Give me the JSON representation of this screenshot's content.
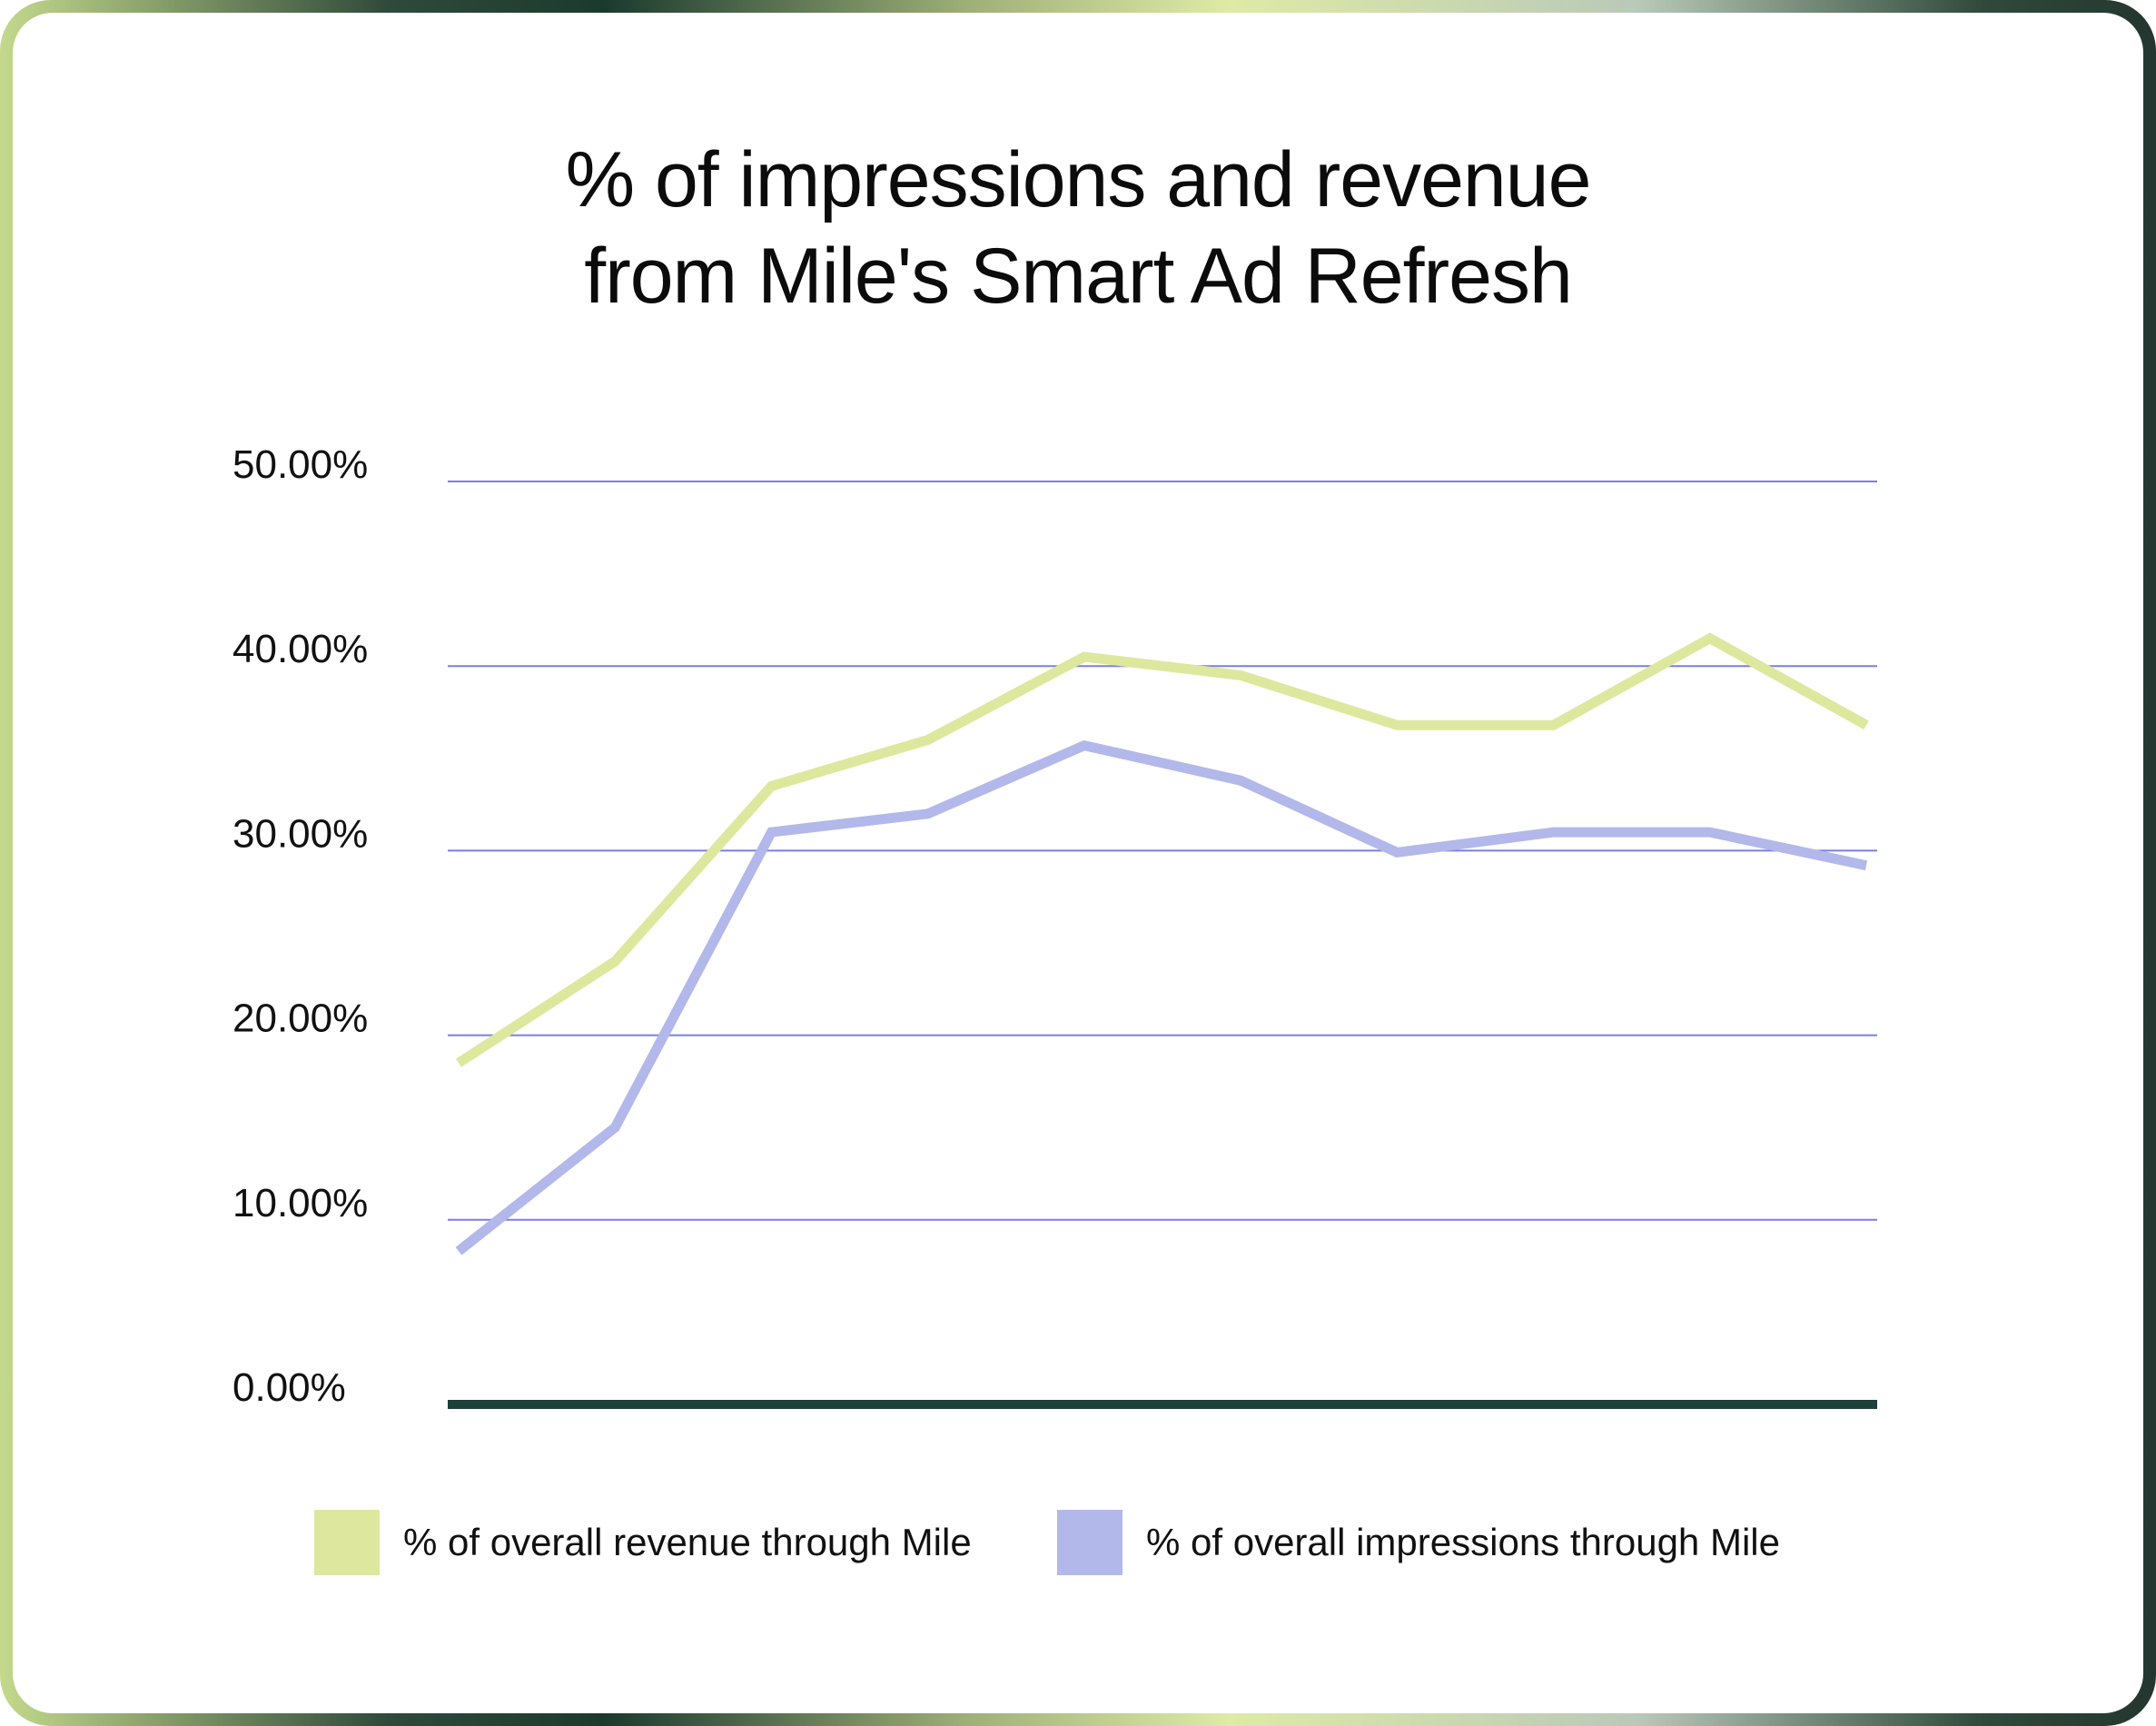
{
  "chart_data": {
    "type": "line",
    "title_lines": [
      "% of impressions and revenue",
      "from Mile's Smart Ad Refresh"
    ],
    "xlabel": "",
    "ylabel": "",
    "ylim": [
      0,
      50
    ],
    "y_ticks": [
      0,
      10,
      20,
      30,
      40,
      50
    ],
    "y_tick_labels": [
      "0.00%",
      "10.00%",
      "20.00%",
      "30.00%",
      "40.00%",
      "50.00%"
    ],
    "grid": true,
    "legend_position": "bottom",
    "x": [
      1,
      2,
      3,
      4,
      5,
      6,
      7,
      8,
      9,
      10
    ],
    "series": [
      {
        "name": "% of overall revenue through Mile",
        "color": "#dde89e",
        "values": [
          18.5,
          24.0,
          33.5,
          36.0,
          40.5,
          39.5,
          36.8,
          36.8,
          41.5,
          36.8
        ]
      },
      {
        "name": "% of overall impressions through Mile",
        "color": "#b3b8ea",
        "values": [
          8.3,
          15.0,
          31.0,
          32.0,
          35.7,
          33.8,
          29.9,
          31.0,
          31.0,
          29.2
        ]
      }
    ],
    "colors": {
      "gridline": "#7a7fe0",
      "baseline": "#1d4038"
    }
  }
}
